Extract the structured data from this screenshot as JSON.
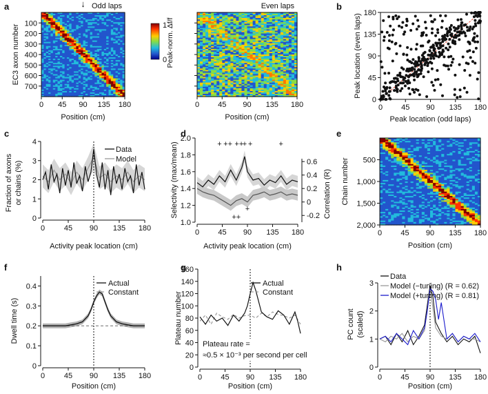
{
  "chart_data": [
    {
      "panel": "a",
      "type": "heatmap",
      "subplots": [
        {
          "title": "Odd laps",
          "ylabel": "EC3 axon number",
          "xlabel": "Position (cm)",
          "xticks": [
            "0",
            "45",
            "90",
            "135",
            "180"
          ],
          "yticks": [
            "100",
            "200",
            "300",
            "400",
            "500",
            "600",
            "700"
          ],
          "rows": 800,
          "xlim": [
            0,
            180
          ],
          "marker_position_cm": 90,
          "arrow_label": "↓"
        },
        {
          "title": "Even laps",
          "xlabel": "Position (cm)",
          "xticks": [
            "0",
            "45",
            "90",
            "135",
            "180"
          ],
          "rows": 800,
          "xlim": [
            0,
            180
          ]
        }
      ],
      "colorbar": {
        "label": "Peak-norm. Δf/f",
        "ticks": [
          "1",
          "0"
        ],
        "colors": [
          "#7f0000",
          "#ff3300",
          "#ffcc00",
          "#88dd44",
          "#22bbdd",
          "#2255cc",
          "#00008b"
        ]
      }
    },
    {
      "panel": "b",
      "type": "scatter",
      "xlabel": "Peak location (odd laps)",
      "ylabel": "Peak location (even laps)",
      "xticks": [
        "0",
        "45",
        "90",
        "135",
        "180"
      ],
      "yticks": [
        "0",
        "45",
        "90",
        "135",
        "180"
      ],
      "xlim": [
        0,
        180
      ],
      "ylim": [
        0,
        180
      ],
      "n_points": 420,
      "diagonal_color": "#e34a33"
    },
    {
      "panel": "c",
      "type": "line",
      "xlabel": "Activity peak location (cm)",
      "ylabel": "Fraction of axons or chains (%)",
      "ylabel_lines": [
        "Fraction of axons",
        "or chains (%)"
      ],
      "xticks": [
        "0",
        "45",
        "90",
        "135",
        "180"
      ],
      "yticks": [
        "0",
        "1",
        "2",
        "3",
        "4"
      ],
      "xlim": [
        0,
        180
      ],
      "ylim": [
        0,
        4
      ],
      "legend": [
        "Data",
        "Model"
      ],
      "series": [
        {
          "name": "Data",
          "color": "#111111",
          "x": [
            0,
            5,
            10,
            15,
            20,
            25,
            30,
            35,
            40,
            45,
            50,
            55,
            60,
            65,
            70,
            75,
            80,
            85,
            90,
            95,
            100,
            105,
            110,
            115,
            120,
            125,
            130,
            135,
            140,
            145,
            150,
            155,
            160,
            165,
            170,
            175,
            180
          ],
          "y": [
            2.0,
            2.4,
            1.5,
            2.8,
            1.9,
            2.3,
            1.3,
            2.6,
            1.7,
            2.5,
            1.6,
            2.9,
            1.8,
            2.2,
            1.4,
            2.7,
            1.9,
            2.4,
            3.6,
            2.3,
            1.6,
            2.9,
            1.5,
            2.5,
            1.2,
            2.7,
            1.8,
            2.3,
            1.5,
            2.6,
            1.9,
            2.2,
            1.3,
            2.8,
            1.7,
            2.4,
            1.5
          ]
        },
        {
          "name": "Model",
          "color": "#999999",
          "x": [
            0,
            10,
            20,
            30,
            40,
            50,
            60,
            70,
            80,
            90,
            100,
            110,
            120,
            130,
            140,
            150,
            160,
            170,
            180
          ],
          "y": [
            2.2,
            1.9,
            2.5,
            2.0,
            2.3,
            1.8,
            2.4,
            2.0,
            2.6,
            3.2,
            2.1,
            2.3,
            1.9,
            2.2,
            2.0,
            2.4,
            1.9,
            2.2,
            2.0
          ],
          "band": [
            0.6,
            0.6,
            0.6,
            0.6,
            0.6,
            0.6,
            0.6,
            0.6,
            0.6,
            0.7,
            0.6,
            0.6,
            0.6,
            0.6,
            0.6,
            0.6,
            0.6,
            0.6,
            0.6
          ]
        }
      ],
      "vline_x": 90
    },
    {
      "panel": "d",
      "type": "line",
      "xlabel": "Activity peak location (cm)",
      "ylabel": "Selectivity (max/mean)",
      "ylabel_right": "Correlation (R)",
      "xticks": [
        "0",
        "45",
        "90",
        "135",
        "180"
      ],
      "yticks": [
        "1.0",
        "1.2",
        "1.4",
        "1.6",
        "1.8",
        "2.0"
      ],
      "yticks_right": [
        "-0.2",
        "0",
        "0.2",
        "0.4",
        "0.6"
      ],
      "xlim": [
        0,
        180
      ],
      "ylim": [
        1.0,
        2.0
      ],
      "ylim_right": [
        -0.3,
        0.95
      ],
      "series": [
        {
          "name": "Selectivity",
          "color": "#111111",
          "x": [
            0,
            10,
            20,
            30,
            40,
            50,
            60,
            70,
            80,
            85,
            90,
            100,
            110,
            120,
            130,
            140,
            150,
            160,
            170,
            180
          ],
          "y": [
            1.47,
            1.42,
            1.5,
            1.45,
            1.55,
            1.48,
            1.62,
            1.5,
            1.65,
            1.78,
            1.6,
            1.5,
            1.52,
            1.44,
            1.5,
            1.47,
            1.55,
            1.45,
            1.5,
            1.48
          ]
        },
        {
          "name": "Correlation",
          "color": "#555555",
          "axis": "right",
          "x": [
            0,
            10,
            20,
            30,
            40,
            50,
            60,
            70,
            80,
            90,
            100,
            110,
            120,
            130,
            140,
            150,
            160,
            170,
            180
          ],
          "y": [
            0.2,
            0.15,
            0.12,
            0.1,
            0.05,
            0.0,
            -0.05,
            0.02,
            0.05,
            0.0,
            0.1,
            0.12,
            0.15,
            0.1,
            0.12,
            0.15,
            0.1,
            0.12,
            0.1
          ]
        }
      ],
      "plus_marks_top": [
        "+",
        "++",
        "++",
        "+",
        "+",
        "+"
      ],
      "plus_marks_bottom": [
        "++",
        "+"
      ]
    },
    {
      "panel": "e",
      "type": "heatmap",
      "xlabel": "Position (cm)",
      "ylabel": "Chain number",
      "xticks": [
        "0",
        "45",
        "90",
        "135",
        "180"
      ],
      "yticks": [
        "500",
        "1,000",
        "1,500",
        "2,000"
      ],
      "rows": 2000,
      "xlim": [
        0,
        180
      ]
    },
    {
      "panel": "f",
      "type": "line",
      "xlabel": "Position (cm)",
      "ylabel": "Dwell time (s)",
      "xticks": [
        "0",
        "45",
        "90",
        "135",
        "180"
      ],
      "yticks": [
        "0",
        "0.1",
        "0.2",
        "0.3",
        "0.4"
      ],
      "xlim": [
        0,
        180
      ],
      "ylim": [
        0,
        0.45
      ],
      "legend": [
        "Actual",
        "Constant"
      ],
      "series": [
        {
          "name": "Actual",
          "color": "#111111",
          "x": [
            0,
            10,
            20,
            30,
            40,
            50,
            60,
            70,
            80,
            85,
            90,
            95,
            100,
            105,
            110,
            115,
            120,
            130,
            140,
            150,
            160,
            170,
            180
          ],
          "y": [
            0.2,
            0.2,
            0.2,
            0.2,
            0.2,
            0.205,
            0.21,
            0.22,
            0.25,
            0.28,
            0.32,
            0.35,
            0.37,
            0.36,
            0.32,
            0.28,
            0.25,
            0.22,
            0.21,
            0.205,
            0.2,
            0.2,
            0.2
          ]
        },
        {
          "name": "Constant",
          "color": "#888888",
          "dashed": true,
          "x": [
            0,
            180
          ],
          "y": [
            0.2,
            0.2
          ]
        }
      ],
      "vline_x": 90
    },
    {
      "panel": "g",
      "type": "line",
      "xlabel": "Position (cm)",
      "ylabel": "Plateau number",
      "xticks": [
        "0",
        "45",
        "90",
        "135",
        "180"
      ],
      "yticks": [
        "0",
        "20",
        "40",
        "60",
        "80",
        "100",
        "120",
        "140",
        "160"
      ],
      "xlim": [
        0,
        180
      ],
      "ylim": [
        0,
        160
      ],
      "legend": [
        "Actual",
        "Constant"
      ],
      "annotation_lines": [
        "Plateau rate =",
        "≈0.5 × 10⁻³ per second per cell"
      ],
      "series": [
        {
          "name": "Actual",
          "color": "#111111",
          "x": [
            0,
            10,
            20,
            30,
            40,
            50,
            60,
            70,
            80,
            85,
            90,
            95,
            100,
            110,
            120,
            130,
            140,
            150,
            160,
            170,
            175,
            180
          ],
          "y": [
            82,
            70,
            85,
            75,
            80,
            68,
            85,
            75,
            88,
            100,
            120,
            138,
            125,
            90,
            82,
            78,
            92,
            85,
            70,
            90,
            75,
            55
          ]
        },
        {
          "name": "Constant",
          "color": "#888888",
          "dashed": true,
          "x": [
            0,
            10,
            20,
            30,
            40,
            50,
            60,
            70,
            80,
            90,
            100,
            110,
            120,
            130,
            140,
            150,
            160,
            170,
            180
          ],
          "y": [
            75,
            85,
            70,
            88,
            82,
            78,
            86,
            80,
            84,
            85,
            80,
            88,
            82,
            90,
            86,
            84,
            80,
            85,
            70
          ]
        }
      ],
      "vline_x": 90
    },
    {
      "panel": "h",
      "type": "line",
      "xlabel": "Position (cm)",
      "ylabel": "PC count (scaled)",
      "ylabel_lines": [
        "PC count",
        "(scaled)"
      ],
      "xticks": [
        "0",
        "45",
        "90",
        "135",
        "180"
      ],
      "yticks": [
        "0",
        "1",
        "2",
        "3"
      ],
      "xlim": [
        0,
        180
      ],
      "ylim": [
        0,
        3
      ],
      "legend": [
        "Data",
        "Model (−tuning) (R = 0.62)",
        "Model (+tuning) (R = 0.81)"
      ],
      "series": [
        {
          "name": "Data",
          "color": "#111111",
          "x": [
            0,
            10,
            20,
            30,
            40,
            50,
            60,
            70,
            80,
            85,
            90,
            95,
            100,
            110,
            120,
            130,
            140,
            150,
            160,
            170,
            180
          ],
          "y": [
            1.0,
            1.1,
            0.8,
            1.2,
            0.9,
            1.3,
            0.8,
            1.1,
            1.5,
            2.2,
            2.9,
            2.5,
            1.6,
            1.2,
            0.9,
            1.1,
            0.8,
            1.0,
            0.9,
            1.1,
            0.5
          ]
        },
        {
          "name": "Model (−tuning)",
          "color": "#999999",
          "x": [
            0,
            10,
            20,
            30,
            40,
            50,
            60,
            70,
            80,
            90,
            100,
            110,
            120,
            130,
            140,
            150,
            160,
            170,
            180
          ],
          "y": [
            1.0,
            0.9,
            1.1,
            1.0,
            1.2,
            0.9,
            1.1,
            1.0,
            1.3,
            2.8,
            1.4,
            1.1,
            1.0,
            1.2,
            0.9,
            1.1,
            1.0,
            1.0,
            0.9
          ]
        },
        {
          "name": "Model (+tuning)",
          "color": "#1a1acc",
          "x": [
            0,
            10,
            20,
            30,
            40,
            50,
            60,
            70,
            80,
            85,
            90,
            95,
            100,
            105,
            110,
            120,
            130,
            140,
            150,
            160,
            170,
            180
          ],
          "y": [
            1.0,
            1.1,
            0.9,
            1.2,
            1.0,
            0.8,
            1.3,
            1.0,
            1.4,
            2.0,
            2.8,
            2.7,
            2.4,
            1.7,
            2.3,
            1.0,
            1.2,
            0.9,
            1.1,
            1.0,
            1.2,
            0.9
          ]
        }
      ],
      "vline_x": 90
    }
  ]
}
